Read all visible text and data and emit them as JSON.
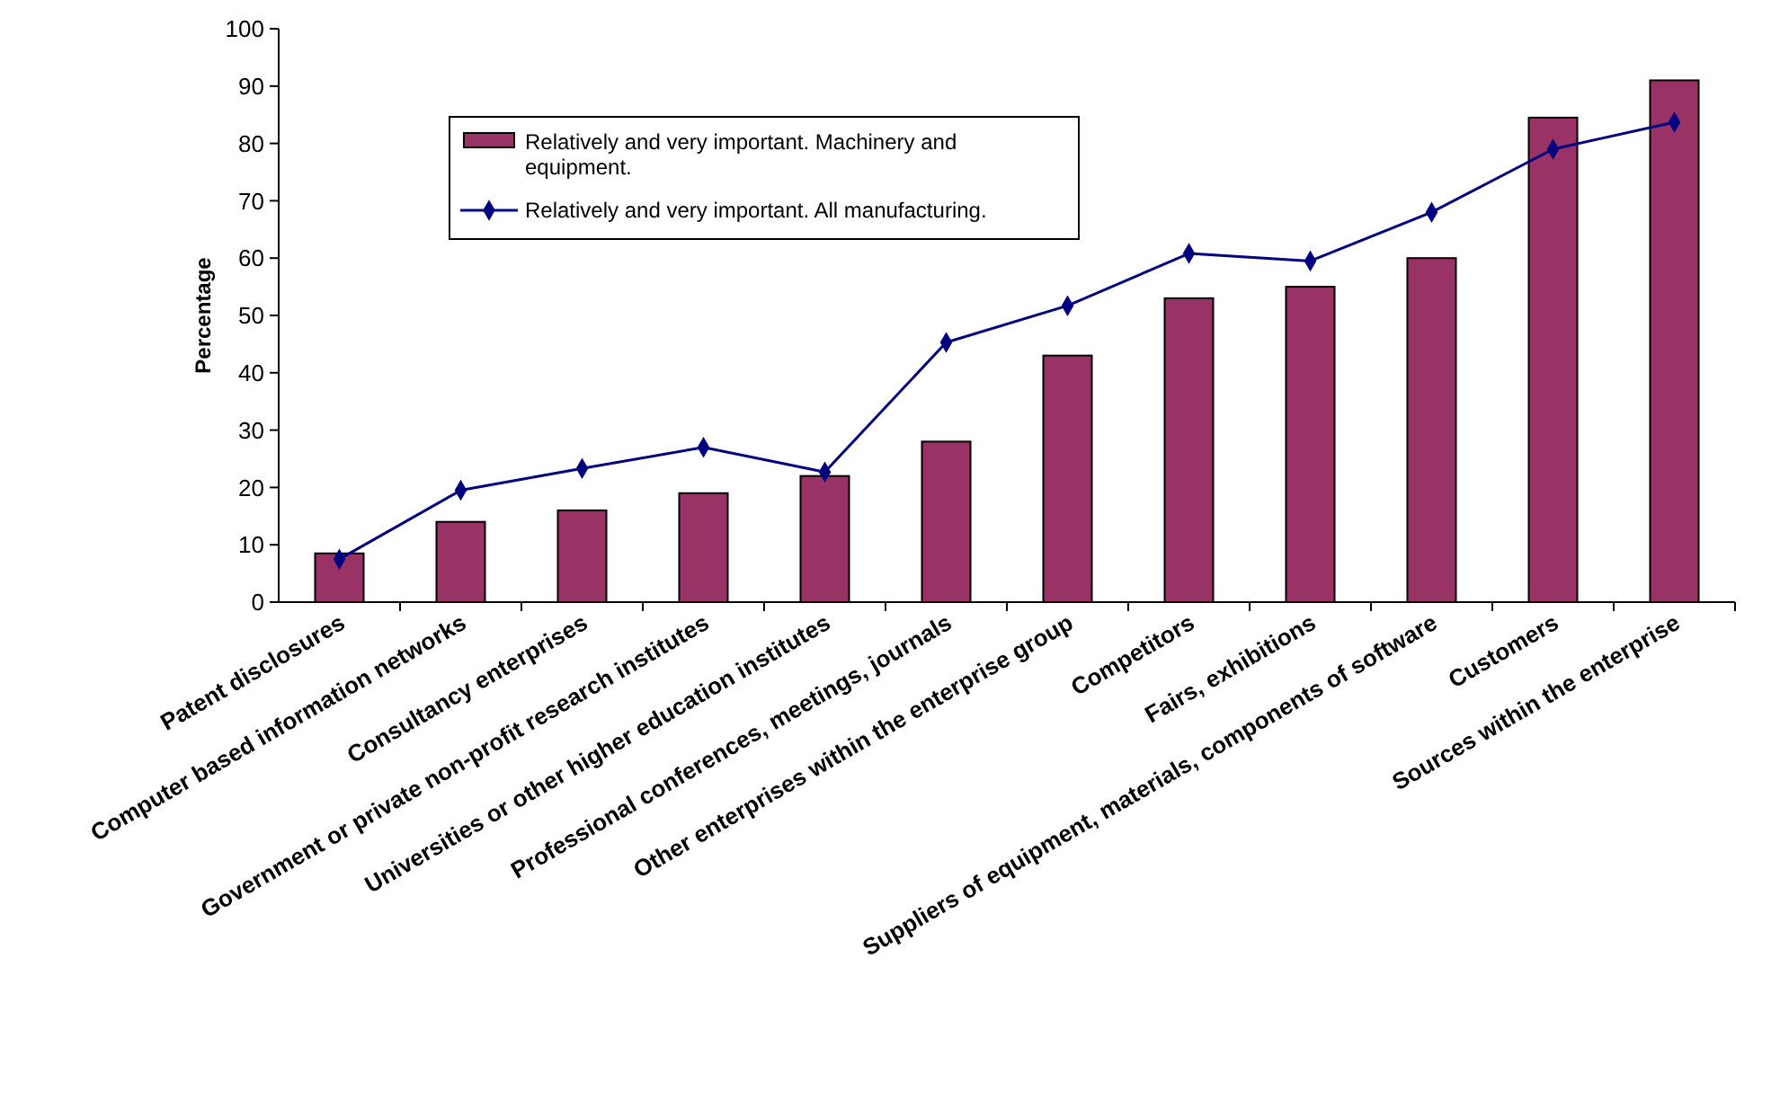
{
  "chart_data": {
    "type": "bar",
    "ylabel": "Percentage",
    "categories": [
      "Patent disclosures",
      "Computer based information networks",
      "Consultancy enterprises",
      "Government or private non-profit research institutes",
      "Universities or other higher education institutes",
      "Professional conferences, meetings, journals",
      "Other enterprises within the enterprise group",
      "Competitors",
      "Fairs, exhibitions",
      "Suppliers of equipment, materials, components of software",
      "Customers",
      "Sources within the enterprise"
    ],
    "series": [
      {
        "name": "Relatively and very important. Machinery and equipment.",
        "color": "#993366",
        "values": [
          8.5,
          14,
          16,
          19,
          22,
          28,
          43,
          53,
          55,
          60,
          84.5,
          91
        ]
      },
      {
        "name": "Relatively and very important. All manufacturing.",
        "type": "line",
        "color": "#000080",
        "marker": "diamond",
        "values": [
          7.5,
          19.5,
          23.3,
          27,
          22.7,
          45.3,
          51.7,
          60.8,
          59.5,
          68,
          79,
          83.7
        ]
      }
    ],
    "ylim": [
      0,
      100
    ],
    "yticks": [
      0,
      10,
      20,
      30,
      40,
      50,
      60,
      70,
      80,
      90,
      100
    ],
    "legend": "top left",
    "grid": false
  }
}
